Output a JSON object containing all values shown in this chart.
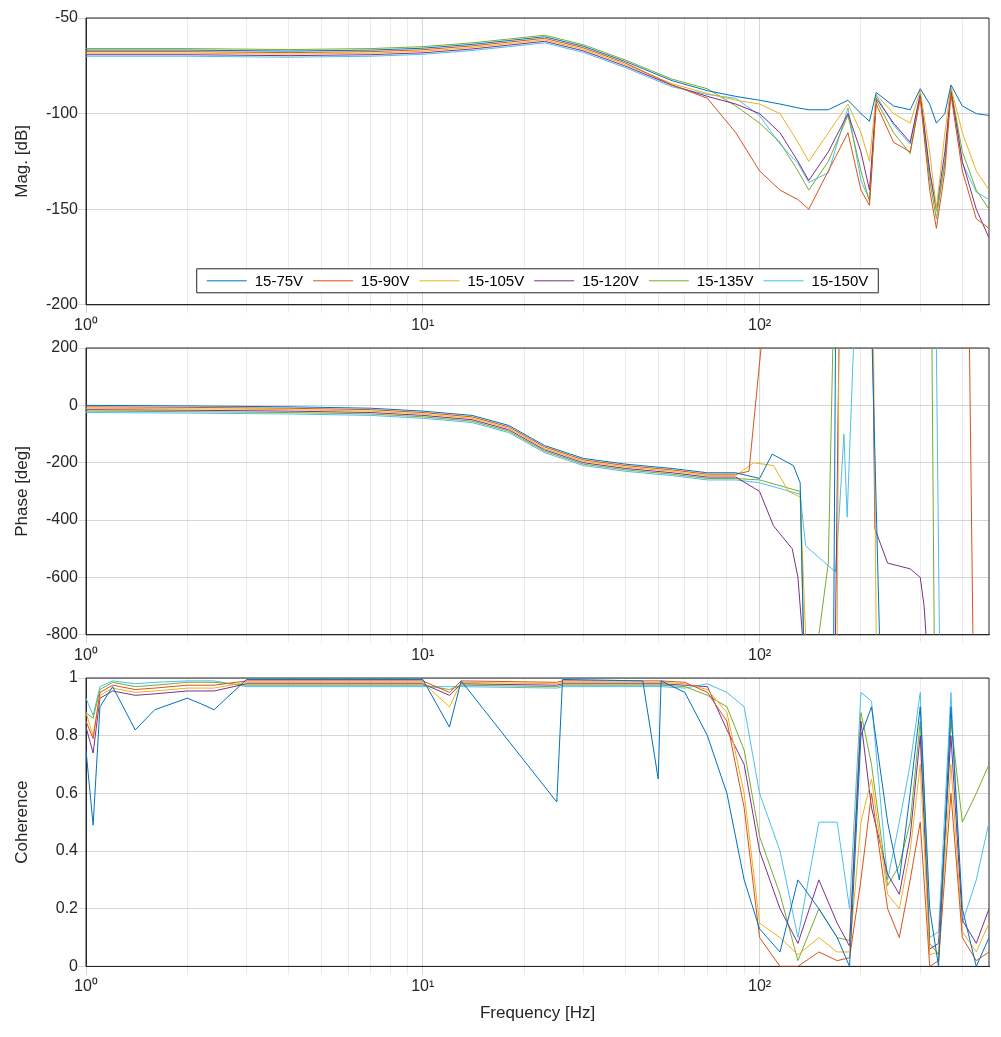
{
  "chart_data": [
    {
      "type": "line",
      "ylabel": "Mag. [dB]",
      "log": "x",
      "grid": true,
      "legend": "bottom",
      "xlim": [
        1,
        480
      ],
      "ylim": [
        -200,
        -50
      ],
      "xticks": [
        {
          "value": 1,
          "label": "10⁰"
        },
        {
          "value": 2,
          "label": null
        },
        {
          "value": 3,
          "label": null
        },
        {
          "value": 4,
          "label": null
        },
        {
          "value": 5,
          "label": null
        },
        {
          "value": 6,
          "label": null
        },
        {
          "value": 7,
          "label": null
        },
        {
          "value": 8,
          "label": null
        },
        {
          "value": 9,
          "label": null
        },
        {
          "value": 10,
          "label": "10¹"
        },
        {
          "value": 20,
          "label": null
        },
        {
          "value": 30,
          "label": null
        },
        {
          "value": 40,
          "label": null
        },
        {
          "value": 50,
          "label": null
        },
        {
          "value": 60,
          "label": null
        },
        {
          "value": 70,
          "label": null
        },
        {
          "value": 80,
          "label": null
        },
        {
          "value": 90,
          "label": null
        },
        {
          "value": 100,
          "label": "10²"
        },
        {
          "value": 200,
          "label": null
        },
        {
          "value": 300,
          "label": null
        },
        {
          "value": 400,
          "label": null
        }
      ],
      "yticks": [
        -200,
        -150,
        -100,
        -50
      ],
      "x": [
        1,
        2,
        4,
        7,
        10,
        14,
        18,
        23,
        30,
        40,
        55,
        70,
        85,
        100,
        115,
        130,
        140,
        160,
        183,
        200,
        212,
        222,
        250,
        280,
        300,
        320,
        335,
        355,
        370,
        400,
        440,
        480
      ],
      "series": [
        {
          "name": "15-75V",
          "color": "#0072bd",
          "values": [
            -66.8,
            -66.8,
            -67.3,
            -66.8,
            -65.8,
            -63.8,
            -61.8,
            -59.8,
            -64.8,
            -72.8,
            -82.8,
            -88,
            -91,
            -93,
            -95,
            -97,
            -98,
            -98,
            -93,
            -100,
            -104,
            -89,
            -96,
            -98,
            -87,
            -95,
            -105,
            -100,
            -85,
            -96,
            -100,
            -101
          ]
        },
        {
          "name": "15-90V",
          "color": "#d95319",
          "values": [
            -67.6,
            -67.6,
            -68.1,
            -67.6,
            -66.6,
            -64.6,
            -62.6,
            -60.6,
            -65.6,
            -73.6,
            -85,
            -92,
            -110,
            -130,
            -140,
            -145,
            -150,
            -130,
            -110,
            -140,
            -148,
            -95,
            -115,
            -120,
            -92,
            -140,
            -160,
            -130,
            -90,
            -130,
            -155,
            -160
          ]
        },
        {
          "name": "15-105V",
          "color": "#edb120",
          "values": [
            -68.4,
            -68.4,
            -68.9,
            -68.4,
            -67.4,
            -65.4,
            -63.4,
            -61.4,
            -66.4,
            -74.4,
            -84.4,
            -89.5,
            -93,
            -95,
            -100,
            -115,
            -125,
            -110,
            -95,
            -110,
            -125,
            -90,
            -100,
            -105,
            -88,
            -120,
            -150,
            -110,
            -86,
            -110,
            -130,
            -140
          ]
        },
        {
          "name": "15-120V",
          "color": "#7e2f8e",
          "values": [
            -69.2,
            -69.2,
            -69.7,
            -69.2,
            -68.2,
            -66.2,
            -64.2,
            -62.2,
            -67.2,
            -75.2,
            -85.2,
            -91,
            -95,
            -100,
            -110,
            -125,
            -135,
            -120,
            -100,
            -120,
            -140,
            -92,
            -105,
            -115,
            -90,
            -130,
            -150,
            -120,
            -88,
            -125,
            -150,
            -165
          ]
        },
        {
          "name": "15-135V",
          "color": "#77ac30",
          "values": [
            -66,
            -66,
            -66.5,
            -66,
            -65,
            -63,
            -61,
            -59,
            -64,
            -72,
            -82,
            -87,
            -96,
            -105,
            -115,
            -130,
            -140,
            -125,
            -101,
            -130,
            -146,
            -93,
            -110,
            -121,
            -91,
            -135,
            -155,
            -125,
            -87,
            -120,
            -140,
            -150
          ]
        },
        {
          "name": "15-150V",
          "color": "#4dbeee",
          "values": [
            -70,
            -70,
            -70.5,
            -70,
            -69,
            -67,
            -65,
            -63,
            -68,
            -76,
            -86,
            -90,
            -92,
            -101,
            -116,
            -126,
            -136,
            -131,
            -97,
            -135,
            -145,
            -90.5,
            -106,
            -116,
            -89,
            -131,
            -151,
            -126,
            -86.5,
            -126,
            -141,
            -145
          ]
        }
      ]
    },
    {
      "type": "line",
      "ylabel": "Phase [deg]",
      "log": "x",
      "grid": true,
      "xlim": [
        1,
        480
      ],
      "ylim": [
        -800,
        200
      ],
      "xticks": [
        {
          "value": 1,
          "label": "10⁰"
        },
        {
          "value": 2,
          "label": null
        },
        {
          "value": 3,
          "label": null
        },
        {
          "value": 4,
          "label": null
        },
        {
          "value": 5,
          "label": null
        },
        {
          "value": 6,
          "label": null
        },
        {
          "value": 7,
          "label": null
        },
        {
          "value": 8,
          "label": null
        },
        {
          "value": 9,
          "label": null
        },
        {
          "value": 10,
          "label": "10¹"
        },
        {
          "value": 20,
          "label": null
        },
        {
          "value": 30,
          "label": null
        },
        {
          "value": 40,
          "label": null
        },
        {
          "value": 50,
          "label": null
        },
        {
          "value": 60,
          "label": null
        },
        {
          "value": 70,
          "label": null
        },
        {
          "value": 80,
          "label": null
        },
        {
          "value": 90,
          "label": null
        },
        {
          "value": 100,
          "label": "10²"
        },
        {
          "value": 200,
          "label": null
        },
        {
          "value": 300,
          "label": null
        },
        {
          "value": 400,
          "label": null
        }
      ],
      "yticks": [
        -800,
        -600,
        -400,
        -200,
        0,
        200
      ],
      "series": [
        {
          "color": "#0072bd",
          "x": [
            1,
            2,
            4,
            7,
            10,
            14,
            18,
            23,
            30,
            40,
            55,
            70,
            85,
            100,
            109,
            126,
            132,
            135,
            160,
            166,
            168,
            200,
            216,
            227
          ],
          "values": [
            0,
            -2,
            -5,
            -10,
            -20,
            -35,
            -70,
            -140,
            -185,
            -205,
            -220,
            -235,
            -235,
            -255,
            -170,
            -210,
            -270,
            -800,
            null,
            -800,
            200,
            null,
            200,
            -800
          ]
        },
        {
          "color": "#d95319",
          "x": [
            1,
            2,
            4,
            7,
            10,
            14,
            18,
            23,
            30,
            40,
            55,
            70,
            85,
            93,
            101,
            110,
            420,
            430
          ],
          "values": [
            -5,
            -7,
            -10,
            -15,
            -25,
            -40,
            -75,
            -145,
            -190,
            -210,
            -225,
            -240,
            -240,
            -230,
            200,
            null,
            200,
            -800
          ]
        },
        {
          "color": "#edb120",
          "x": [
            1,
            2,
            4,
            7,
            10,
            14,
            18,
            23,
            30,
            40,
            55,
            70,
            85,
            96,
            110,
            122,
            132,
            137,
            155,
            170,
            172,
            200,
            218,
            222
          ],
          "values": [
            -10,
            -12,
            -15,
            -20,
            -30,
            -45,
            -80,
            -150,
            -195,
            -215,
            -230,
            -245,
            -245,
            -200,
            -210,
            -300,
            -320,
            -800,
            null,
            -800,
            200,
            null,
            200,
            -800
          ]
        },
        {
          "color": "#7e2f8e",
          "x": [
            1,
            2,
            4,
            7,
            10,
            14,
            18,
            23,
            30,
            40,
            55,
            70,
            85,
            100,
            110,
            125,
            130,
            134,
            150,
            168,
            172,
            200,
            217,
            220,
            240,
            280,
            300,
            308,
            312
          ],
          "values": [
            -15,
            -17,
            -20,
            -25,
            -35,
            -50,
            -85,
            -155,
            -200,
            -220,
            -235,
            -250,
            -250,
            -300,
            -420,
            -500,
            -600,
            -800,
            null,
            -800,
            200,
            null,
            200,
            -430,
            -550,
            -570,
            -600,
            -700,
            -800
          ]
        },
        {
          "color": "#77ac30",
          "x": [
            1,
            2,
            4,
            7,
            10,
            14,
            18,
            23,
            30,
            40,
            55,
            70,
            85,
            100,
            132,
            135,
            145,
            150,
            160,
            165,
            250,
            325,
            330
          ],
          "values": [
            -20,
            -22,
            -25,
            -30,
            -40,
            -55,
            -90,
            -160,
            -205,
            -225,
            -240,
            -255,
            -255,
            -260,
            -300,
            -800,
            null,
            -800,
            -550,
            200,
            null,
            200,
            -800
          ]
        },
        {
          "color": "#4dbeee",
          "x": [
            1,
            2,
            4,
            7,
            10,
            14,
            18,
            23,
            30,
            40,
            55,
            70,
            85,
            100,
            132,
            137,
            155,
            168,
            172,
            178,
            182,
            190,
            260,
            335,
            342
          ],
          "values": [
            -25,
            -27,
            -30,
            -35,
            -45,
            -60,
            -95,
            -165,
            -210,
            -230,
            -245,
            -260,
            -260,
            -270,
            -310,
            -490,
            -545,
            -580,
            -400,
            -100,
            -390,
            200,
            null,
            200,
            -800
          ]
        }
      ]
    },
    {
      "type": "line",
      "xlabel": "Frequency [Hz]",
      "ylabel": "Coherence",
      "log": "x",
      "grid": true,
      "xlim": [
        1,
        480
      ],
      "ylim": [
        0,
        1
      ],
      "xticks": [
        {
          "value": 1,
          "label": "10⁰"
        },
        {
          "value": 2,
          "label": null
        },
        {
          "value": 3,
          "label": null
        },
        {
          "value": 4,
          "label": null
        },
        {
          "value": 5,
          "label": null
        },
        {
          "value": 6,
          "label": null
        },
        {
          "value": 7,
          "label": null
        },
        {
          "value": 8,
          "label": null
        },
        {
          "value": 9,
          "label": null
        },
        {
          "value": 10,
          "label": "10¹"
        },
        {
          "value": 20,
          "label": null
        },
        {
          "value": 30,
          "label": null
        },
        {
          "value": 40,
          "label": null
        },
        {
          "value": 50,
          "label": null
        },
        {
          "value": 60,
          "label": null
        },
        {
          "value": 70,
          "label": null
        },
        {
          "value": 80,
          "label": null
        },
        {
          "value": 90,
          "label": null
        },
        {
          "value": 100,
          "label": "10²"
        },
        {
          "value": 200,
          "label": null
        },
        {
          "value": 300,
          "label": null
        },
        {
          "value": 400,
          "label": null
        }
      ],
      "yticks": [
        0,
        0.2,
        0.4,
        0.6,
        0.8,
        1
      ],
      "x": [
        1,
        1.05,
        1.1,
        1.2,
        1.4,
        1.6,
        2,
        2.2,
        2.4,
        3,
        10,
        12,
        13,
        25,
        26,
        45,
        50,
        51,
        60,
        70,
        80,
        90,
        100,
        115,
        130,
        150,
        170,
        185,
        200,
        215,
        240,
        260,
        280,
        300,
        320,
        340,
        370,
        400,
        440,
        480
      ],
      "series": [
        {
          "color": "#0072bd",
          "values": [
            0.75,
            0.49,
            0.9,
            0.97,
            0.82,
            0.89,
            0.93,
            0.91,
            0.89,
            0.995,
            0.995,
            0.83,
            0.99,
            0.57,
            0.995,
            0.99,
            0.65,
            0.99,
            0.95,
            0.8,
            0.6,
            0.3,
            0.13,
            0.05,
            0.3,
            0.2,
            0.1,
            0,
            0.8,
            0.9,
            0.5,
            0.3,
            0.6,
            0.9,
            0.2,
            0,
            0.9,
            0.2,
            0,
            0.1
          ]
        },
        {
          "color": "#d95319",
          "values": [
            0.85,
            0.79,
            0.95,
            0.975,
            0.96,
            0.965,
            0.975,
            0.975,
            0.975,
            0.99,
            0.99,
            0.95,
            0.99,
            0.985,
            0.99,
            0.99,
            0.99,
            0.99,
            0.985,
            0.95,
            0.85,
            0.55,
            0.1,
            0,
            0,
            0.05,
            0.02,
            0.03,
            0.3,
            0.6,
            0.2,
            0.1,
            0.3,
            0.5,
            0,
            0.02,
            0.6,
            0.1,
            0.02,
            0.05
          ]
        },
        {
          "color": "#edb120",
          "values": [
            0.88,
            0.8,
            0.94,
            0.965,
            0.95,
            0.955,
            0.965,
            0.965,
            0.965,
            0.985,
            0.985,
            0.9,
            0.985,
            0.98,
            0.985,
            0.985,
            0.985,
            0.985,
            0.98,
            0.96,
            0.88,
            0.6,
            0.15,
            0.1,
            0.04,
            0.1,
            0.05,
            0.05,
            0.5,
            0.65,
            0.25,
            0.2,
            0.4,
            0.7,
            0.04,
            0.05,
            0.7,
            0.12,
            0.05,
            0.15
          ]
        },
        {
          "color": "#7e2f8e",
          "values": [
            0.83,
            0.74,
            0.93,
            0.955,
            0.94,
            0.945,
            0.955,
            0.955,
            0.955,
            0.98,
            0.98,
            0.94,
            0.98,
            0.975,
            0.98,
            0.98,
            0.98,
            0.98,
            0.975,
            0.97,
            0.82,
            0.7,
            0.4,
            0.2,
            0.08,
            0.3,
            0.15,
            0.07,
            0.85,
            0.55,
            0.32,
            0.25,
            0.45,
            0.8,
            0.06,
            0.08,
            0.8,
            0.16,
            0.08,
            0.2
          ]
        },
        {
          "color": "#77ac30",
          "values": [
            0.88,
            0.86,
            0.96,
            0.985,
            0.97,
            0.975,
            0.985,
            0.985,
            0.985,
            0.975,
            0.975,
            0.96,
            0.975,
            0.97,
            0.975,
            0.975,
            0.975,
            0.975,
            0.97,
            0.94,
            0.9,
            0.75,
            0.45,
            0.25,
            0.02,
            0.2,
            0.1,
            0.09,
            0.88,
            0.7,
            0.28,
            0.35,
            0.5,
            0.85,
            0.08,
            0.04,
            0.85,
            0.5,
            0.6,
            0.7
          ]
        },
        {
          "color": "#4dbeee",
          "values": [
            0.93,
            0.87,
            0.97,
            0.99,
            0.98,
            0.985,
            0.99,
            0.99,
            0.99,
            0.97,
            0.97,
            0.97,
            0.97,
            0.965,
            0.97,
            0.97,
            0.97,
            0.97,
            0.965,
            0.98,
            0.95,
            0.9,
            0.6,
            0.4,
            0.1,
            0.5,
            0.5,
            0.2,
            0.95,
            0.92,
            0.3,
            0.5,
            0.7,
            0.95,
            0.1,
            0.12,
            0.95,
            0.15,
            0.3,
            0.5
          ]
        }
      ]
    }
  ]
}
